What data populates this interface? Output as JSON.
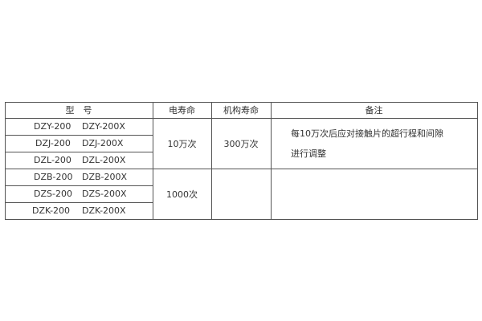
{
  "table": {
    "headers": [
      "型　号",
      "电寿命",
      "机构寿命",
      "备注"
    ],
    "models": [
      [
        "DZY-200",
        "DZY-200X"
      ],
      [
        "DZJ-200",
        "DZJ-200X"
      ],
      [
        "DZL-200",
        "DZL-200X"
      ],
      [
        "DZB-200",
        "DZB-200X"
      ],
      [
        "DZS-200",
        "DZS-200X"
      ],
      [
        "DZK-200",
        "DZK-200X"
      ]
    ],
    "groups": [
      {
        "electrical_life": "10万次",
        "mechanical_life": "300万次",
        "remarks": [
          "每10万次后应对接触片的超行程和间隙",
          "进行调整"
        ]
      },
      {
        "electrical_life": "1000次",
        "mechanical_life": "",
        "remarks": []
      }
    ]
  }
}
